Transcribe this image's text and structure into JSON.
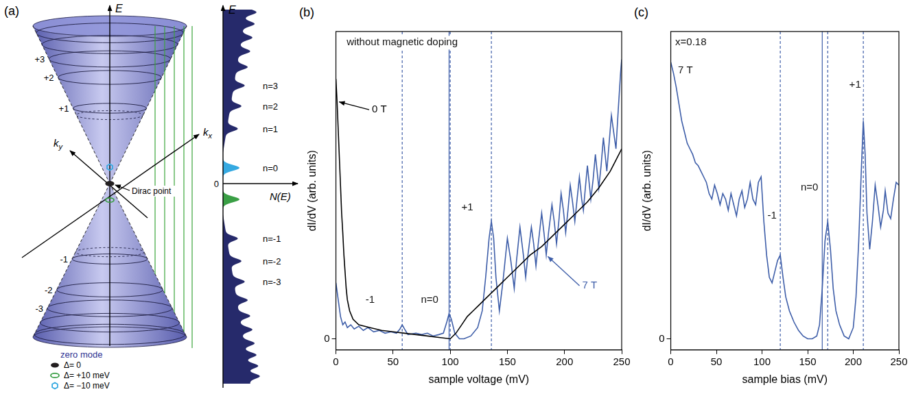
{
  "diagram": {
    "panel": "(a)",
    "cone": {
      "energy_label": "E",
      "kx_label": "kx",
      "ky_label": "ky",
      "dirac_point_label": "Dirac point",
      "upper_levels": [
        "+1",
        "+2",
        "+3"
      ],
      "lower_levels": [
        "-1",
        "-2",
        "-3"
      ]
    },
    "dos": {
      "energy_label": "E",
      "x_label": "N(E)",
      "origin_label": "0",
      "upper_labels": [
        "n=1",
        "n=2",
        "n=3"
      ],
      "zero_label": "n=0",
      "lower_labels": [
        "n=-1",
        "n=-2",
        "n=-3"
      ]
    },
    "zero_mode_key": {
      "title": "zero mode",
      "items": [
        {
          "label": "Δ= 0",
          "color": "#231f20",
          "marker": "dot"
        },
        {
          "label": "Δ= +10 meV",
          "color": "#3a9f45",
          "marker": "ring"
        },
        {
          "label": "Δ= −10 meV",
          "color": "#35a9e1",
          "marker": "hexagon"
        }
      ]
    }
  },
  "chart_data": [
    {
      "panel": "(b)",
      "type": "line",
      "x_label": "sample voltage (mV)",
      "y_label": "dI/dV (arb. units)",
      "xlim": [
        0,
        250
      ],
      "xticks": [
        0,
        50,
        100,
        150,
        200,
        250
      ],
      "ylim": [
        -0.04,
        1.1
      ],
      "yticks": [
        0
      ],
      "grid": false,
      "series": [
        {
          "name": "0 T",
          "color": "#000000",
          "x": [
            0,
            1,
            2,
            3,
            4,
            5,
            6,
            7,
            8,
            9,
            10,
            12,
            15,
            20,
            30,
            40,
            50,
            60,
            70,
            80,
            90,
            100,
            105,
            110,
            115,
            120,
            125,
            130,
            140,
            150,
            160,
            170,
            180,
            190,
            200,
            210,
            220,
            230,
            240,
            245,
            250
          ],
          "values": [
            0.93,
            0.85,
            0.75,
            0.65,
            0.55,
            0.45,
            0.38,
            0.3,
            0.24,
            0.18,
            0.14,
            0.1,
            0.07,
            0.05,
            0.04,
            0.03,
            0.025,
            0.02,
            0.015,
            0.01,
            0.005,
            0,
            0.02,
            0.05,
            0.08,
            0.1,
            0.12,
            0.14,
            0.18,
            0.22,
            0.26,
            0.3,
            0.33,
            0.37,
            0.41,
            0.45,
            0.49,
            0.54,
            0.6,
            0.64,
            0.68
          ]
        },
        {
          "name": "7 T",
          "color": "#3d5da8",
          "x": [
            0,
            2,
            4,
            6,
            8,
            10,
            13,
            16,
            20,
            24,
            28,
            33,
            38,
            43,
            48,
            53,
            56,
            58,
            60,
            63,
            70,
            75,
            80,
            85,
            90,
            94,
            97,
            99,
            101,
            104,
            108,
            112,
            118,
            124,
            128,
            131,
            134,
            136,
            138,
            140,
            143,
            146,
            150,
            153,
            156,
            158,
            161,
            164,
            166,
            168,
            171,
            173,
            175,
            177,
            180,
            182,
            184,
            186,
            189,
            191,
            193,
            195,
            197,
            199,
            201,
            203,
            205,
            207,
            209,
            211,
            213,
            215,
            216.5,
            218,
            220,
            221.5,
            223,
            225,
            227,
            228.5,
            230,
            232,
            234,
            235.5,
            237,
            239,
            241,
            243,
            245,
            247,
            249,
            250
          ],
          "values": [
            0.2,
            0.14,
            0.08,
            0.05,
            0.06,
            0.04,
            0.05,
            0.035,
            0.045,
            0.03,
            0.04,
            0.025,
            0.03,
            0.02,
            0.025,
            0.02,
            0.035,
            0.05,
            0.035,
            0.015,
            0.02,
            0.015,
            0.02,
            0.01,
            0.015,
            0.02,
            0.06,
            0.09,
            0.07,
            0.02,
            0,
            0,
            0.01,
            0.04,
            0.1,
            0.22,
            0.36,
            0.42,
            0.36,
            0.22,
            0.1,
            0.2,
            0.36,
            0.28,
            0.18,
            0.28,
            0.4,
            0.3,
            0.22,
            0.3,
            0.4,
            0.34,
            0.26,
            0.34,
            0.45,
            0.38,
            0.3,
            0.38,
            0.48,
            0.42,
            0.34,
            0.42,
            0.52,
            0.46,
            0.38,
            0.46,
            0.55,
            0.49,
            0.42,
            0.5,
            0.58,
            0.5,
            0.46,
            0.53,
            0.62,
            0.56,
            0.5,
            0.57,
            0.66,
            0.6,
            0.54,
            0.62,
            0.72,
            0.66,
            0.6,
            0.7,
            0.8,
            0.74,
            0.68,
            0.82,
            0.95,
            1
          ]
        }
      ],
      "vlines": [
        {
          "x": 58,
          "line_style": "dashed"
        },
        {
          "x": 99,
          "line_style": "solid"
        },
        {
          "x": 100,
          "line_style": "dashed"
        },
        {
          "x": 136,
          "line_style": "dashed"
        }
      ],
      "annotations": [
        {
          "text": "without magnetic doping",
          "x": 58,
          "y": 1.06
        },
        {
          "text": "0 T",
          "x": 38,
          "y": 0.82,
          "series": "0 T"
        },
        {
          "text": "7 T",
          "x": 222,
          "y": 0.19,
          "series": "7 T"
        },
        {
          "text": "-1",
          "x": 30,
          "y": 0.14
        },
        {
          "text": "n=0",
          "x": 82,
          "y": 0.14
        },
        {
          "text": "+1",
          "x": 115,
          "y": 0.47
        }
      ]
    },
    {
      "panel": "(c)",
      "type": "line",
      "x_label": "sample bias (mV)",
      "y_label": "dI/dV (arb. units)",
      "xlim": [
        0,
        250
      ],
      "xticks": [
        0,
        50,
        100,
        150,
        200,
        250
      ],
      "ylim": [
        -0.04,
        1.1
      ],
      "yticks": [
        0
      ],
      "grid": false,
      "series": [
        {
          "color": "#3d5da8",
          "x": [
            0,
            3,
            6,
            9,
            12,
            15,
            18,
            21,
            24,
            27,
            30,
            33,
            36,
            39,
            42,
            45,
            48,
            51,
            54,
            57,
            60,
            63,
            66,
            69,
            72,
            75,
            78,
            81,
            84,
            87,
            90,
            93,
            96,
            99,
            102,
            105,
            108,
            111,
            114,
            117,
            120,
            123,
            126,
            130,
            135,
            140,
            145,
            150,
            155,
            160,
            163,
            166,
            169,
            172,
            175,
            178,
            181,
            185,
            190,
            195,
            200,
            203,
            206,
            209,
            211,
            213,
            215,
            218,
            221,
            224,
            227,
            230,
            233,
            235,
            238,
            241,
            244,
            247,
            250
          ],
          "values": [
            0.99,
            0.95,
            0.9,
            0.84,
            0.78,
            0.74,
            0.7,
            0.68,
            0.66,
            0.63,
            0.62,
            0.6,
            0.58,
            0.56,
            0.52,
            0.5,
            0.55,
            0.52,
            0.48,
            0.52,
            0.5,
            0.46,
            0.52,
            0.48,
            0.44,
            0.5,
            0.53,
            0.47,
            0.5,
            0.56,
            0.5,
            0.48,
            0.56,
            0.58,
            0.42,
            0.3,
            0.22,
            0.2,
            0.24,
            0.28,
            0.3,
            0.22,
            0.15,
            0.1,
            0.06,
            0.03,
            0.01,
            0,
            0,
            0.01,
            0.05,
            0.18,
            0.35,
            0.42,
            0.32,
            0.18,
            0.1,
            0.05,
            0.01,
            0,
            0.04,
            0.15,
            0.35,
            0.62,
            0.78,
            0.66,
            0.45,
            0.32,
            0.42,
            0.55,
            0.48,
            0.4,
            0.46,
            0.53,
            0.45,
            0.43,
            0.5,
            0.56,
            0.55
          ]
        }
      ],
      "vlines": [
        {
          "x": 120,
          "line_style": "dashed"
        },
        {
          "x": 166,
          "line_style": "solid"
        },
        {
          "x": 172,
          "line_style": "dashed"
        },
        {
          "x": 211,
          "line_style": "dashed"
        }
      ],
      "annotations": [
        {
          "text": "x=0.18",
          "x": 22,
          "y": 1.06
        },
        {
          "text": "7 T",
          "x": 16,
          "y": 0.96
        },
        {
          "text": "-1",
          "x": 111,
          "y": 0.44
        },
        {
          "text": "n=0",
          "x": 152,
          "y": 0.54
        },
        {
          "text": "+1",
          "x": 202,
          "y": 0.91
        }
      ]
    }
  ]
}
